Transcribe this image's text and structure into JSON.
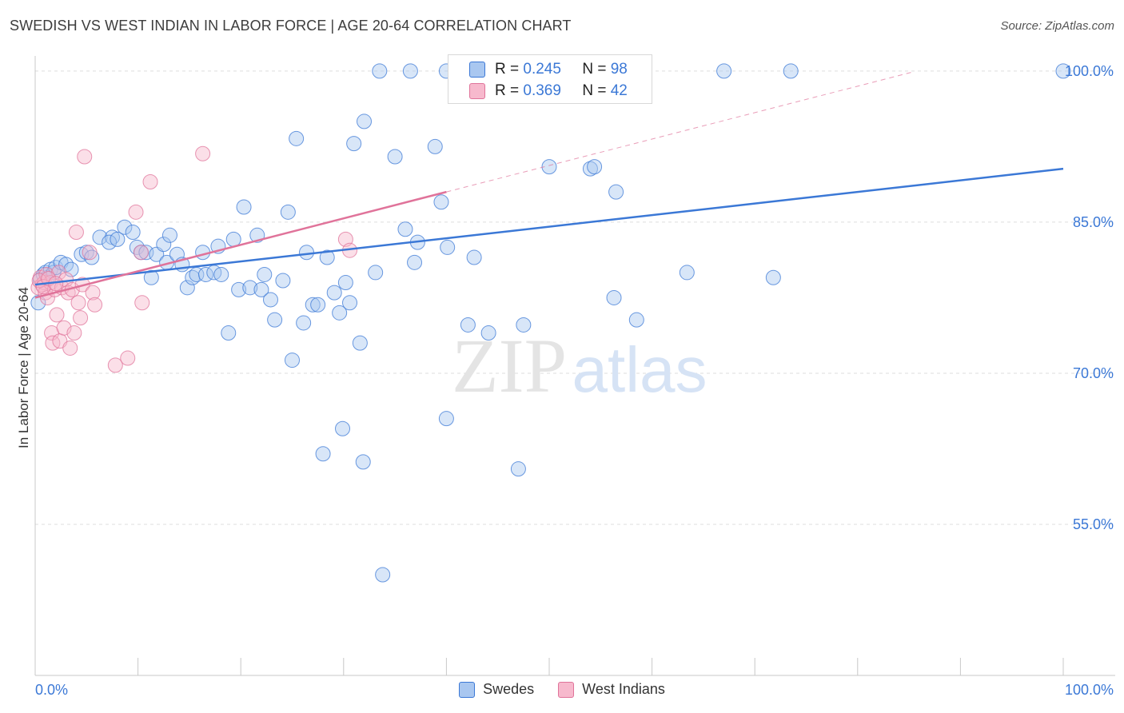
{
  "title": "SWEDISH VS WEST INDIAN IN LABOR FORCE | AGE 20-64 CORRELATION CHART",
  "source": "Source: ZipAtlas.com",
  "watermark_zip": "ZIP",
  "watermark_atlas": "atlas",
  "colors": {
    "blue": "#3b78d6",
    "blue_fill": "#a9c7f0",
    "pink": "#e0739a",
    "pink_fill": "#f7b9cd",
    "grid": "#dddddd",
    "axis_label": "#3b78d6"
  },
  "legend": {
    "r_label": "R =",
    "n_label": "N =",
    "rows": [
      {
        "r": "0.245",
        "n": "98"
      },
      {
        "r": "0.369",
        "n": "42"
      }
    ]
  },
  "chart_data": {
    "type": "scatter",
    "title": "SWEDISH VS WEST INDIAN IN LABOR FORCE | AGE 20-64 CORRELATION CHART",
    "xlabel": "",
    "ylabel": "In Labor Force | Age 20-64",
    "xlim": [
      0,
      100
    ],
    "ylim": [
      40,
      101.5
    ],
    "x_tick_labels": [
      "0.0%",
      "100.0%"
    ],
    "y_ticks": [
      55,
      70,
      85,
      100
    ],
    "y_tick_labels": [
      "55.0%",
      "70.0%",
      "85.0%",
      "100.0%"
    ],
    "grid": true,
    "legend_position": "bottom",
    "series": [
      {
        "name": "Swedes",
        "color": "#3b78d6",
        "trend": {
          "x": [
            0,
            100
          ],
          "y": [
            78.8,
            90.3
          ]
        },
        "points": [
          [
            0.3,
            77.0
          ],
          [
            0.5,
            79.3
          ],
          [
            0.8,
            79.8
          ],
          [
            1.0,
            80.0
          ],
          [
            1.2,
            79.5
          ],
          [
            1.5,
            80.3
          ],
          [
            1.8,
            80.0
          ],
          [
            2.0,
            80.5
          ],
          [
            2.5,
            81.0
          ],
          [
            3.0,
            80.8
          ],
          [
            3.5,
            80.3
          ],
          [
            4.5,
            81.8
          ],
          [
            5.0,
            82.0
          ],
          [
            5.5,
            81.5
          ],
          [
            6.3,
            83.5
          ],
          [
            7.5,
            83.5
          ],
          [
            7.2,
            83.0
          ],
          [
            8.0,
            83.3
          ],
          [
            8.7,
            84.5
          ],
          [
            9.5,
            84.0
          ],
          [
            9.9,
            82.5
          ],
          [
            10.3,
            82.0
          ],
          [
            10.8,
            82.0
          ],
          [
            11.3,
            79.5
          ],
          [
            11.8,
            81.8
          ],
          [
            12.5,
            82.8
          ],
          [
            12.8,
            81.0
          ],
          [
            13.1,
            83.7
          ],
          [
            13.8,
            81.8
          ],
          [
            14.3,
            80.8
          ],
          [
            14.8,
            78.5
          ],
          [
            15.3,
            79.5
          ],
          [
            15.7,
            79.8
          ],
          [
            16.3,
            82.0
          ],
          [
            16.6,
            79.8
          ],
          [
            17.4,
            80.0
          ],
          [
            18.1,
            79.8
          ],
          [
            17.8,
            82.6
          ],
          [
            18.8,
            74.0
          ],
          [
            19.3,
            83.3
          ],
          [
            19.8,
            78.3
          ],
          [
            20.3,
            86.5
          ],
          [
            20.9,
            78.5
          ],
          [
            21.6,
            83.7
          ],
          [
            22.0,
            78.3
          ],
          [
            22.3,
            79.8
          ],
          [
            22.9,
            77.3
          ],
          [
            23.3,
            75.3
          ],
          [
            24.1,
            79.2
          ],
          [
            24.6,
            86.0
          ],
          [
            25.0,
            71.3
          ],
          [
            25.4,
            93.3
          ],
          [
            26.1,
            75.0
          ],
          [
            26.4,
            82.0
          ],
          [
            27.0,
            76.8
          ],
          [
            27.5,
            76.8
          ],
          [
            28.0,
            62.0
          ],
          [
            28.4,
            81.5
          ],
          [
            29.1,
            78.0
          ],
          [
            29.6,
            76.0
          ],
          [
            29.9,
            64.5
          ],
          [
            30.2,
            79.0
          ],
          [
            30.6,
            77.0
          ],
          [
            31.0,
            92.8
          ],
          [
            31.6,
            73.0
          ],
          [
            31.9,
            61.2
          ],
          [
            32.0,
            95.0
          ],
          [
            33.1,
            80.0
          ],
          [
            33.8,
            50.0
          ],
          [
            35.0,
            91.5
          ],
          [
            36.0,
            84.3
          ],
          [
            36.9,
            81.0
          ],
          [
            37.2,
            83.0
          ],
          [
            38.9,
            92.5
          ],
          [
            39.5,
            87.0
          ],
          [
            40.0,
            65.5
          ],
          [
            40.1,
            82.5
          ],
          [
            42.1,
            74.8
          ],
          [
            42.7,
            81.5
          ],
          [
            44.1,
            74.0
          ],
          [
            47.0,
            60.5
          ],
          [
            47.5,
            74.8
          ],
          [
            50.0,
            90.5
          ],
          [
            54.0,
            90.3
          ],
          [
            54.4,
            90.5
          ],
          [
            56.5,
            88.0
          ],
          [
            56.3,
            77.5
          ],
          [
            58.5,
            75.3
          ],
          [
            63.4,
            80.0
          ],
          [
            71.8,
            79.5
          ],
          [
            33.5,
            100.0
          ],
          [
            36.5,
            100.0
          ],
          [
            40.0,
            100.0
          ],
          [
            42.0,
            100.0
          ],
          [
            47.0,
            100.0
          ],
          [
            67.0,
            100.0
          ],
          [
            73.5,
            100.0
          ],
          [
            100.0,
            100.0
          ]
        ]
      },
      {
        "name": "West Indians",
        "color": "#e0739a",
        "trend": {
          "x": [
            0,
            40
          ],
          "y": [
            77.5,
            88.0
          ]
        },
        "points": [
          [
            0.3,
            78.5
          ],
          [
            0.5,
            79.5
          ],
          [
            0.7,
            78.8
          ],
          [
            0.9,
            79.0
          ],
          [
            1.0,
            78.0
          ],
          [
            1.1,
            79.8
          ],
          [
            1.2,
            77.5
          ],
          [
            1.5,
            79.0
          ],
          [
            1.6,
            74.0
          ],
          [
            1.7,
            73.0
          ],
          [
            1.9,
            78.3
          ],
          [
            2.1,
            75.8
          ],
          [
            2.3,
            80.0
          ],
          [
            2.4,
            73.2
          ],
          [
            2.6,
            78.5
          ],
          [
            2.8,
            74.5
          ],
          [
            3.0,
            79.3
          ],
          [
            3.2,
            78.0
          ],
          [
            3.4,
            72.5
          ],
          [
            3.6,
            78.3
          ],
          [
            3.8,
            74.0
          ],
          [
            4.0,
            84.0
          ],
          [
            4.2,
            77.0
          ],
          [
            4.4,
            75.5
          ],
          [
            4.6,
            78.8
          ],
          [
            4.8,
            91.5
          ],
          [
            5.3,
            82.0
          ],
          [
            5.6,
            78.0
          ],
          [
            5.8,
            76.8
          ],
          [
            7.8,
            70.8
          ],
          [
            9.0,
            71.5
          ],
          [
            9.8,
            86.0
          ],
          [
            10.3,
            82.0
          ],
          [
            10.4,
            77.0
          ],
          [
            11.2,
            89.0
          ],
          [
            16.3,
            91.8
          ],
          [
            30.2,
            83.3
          ],
          [
            30.6,
            82.2
          ],
          [
            0.4,
            79.2
          ],
          [
            0.8,
            78.6
          ],
          [
            1.3,
            79.4
          ],
          [
            2.0,
            78.9
          ]
        ]
      }
    ]
  }
}
